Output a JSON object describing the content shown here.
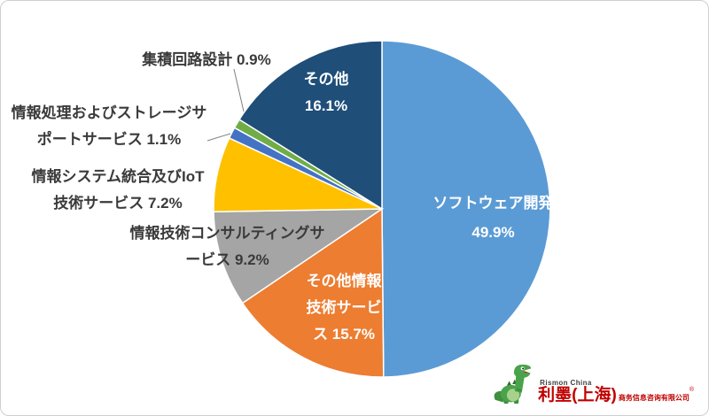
{
  "chart_data": {
    "type": "pie",
    "title": "",
    "unit": "%",
    "start_angle_deg": 0,
    "direction": "clockwise",
    "legend": "none",
    "segments": [
      {
        "label": "ソフトウェア開発",
        "value": 49.9,
        "color": "#5B9BD5",
        "display": "ソフトウェア開発\n49.9%"
      },
      {
        "label": "その他情報技術サービス",
        "value": 15.7,
        "color": "#ED7D31",
        "display": "その他情報\n技術サービ\nス 15.7%"
      },
      {
        "label": "情報技術コンサルティングサービス",
        "value": 9.2,
        "color": "#A5A5A5",
        "display": "情報技術コンサルティングサ\nービス 9.2%"
      },
      {
        "label": "情報システム統合及びIoT技術サービス",
        "value": 7.2,
        "color": "#FFC000",
        "display": "情報システム統合及びIoT\n技術サービス 7.2%"
      },
      {
        "label": "情報処理およびストレージサポートサービス",
        "value": 1.1,
        "color": "#4472C4",
        "display": "情報処理およびストレージサ\nポートサービス 1.1%"
      },
      {
        "label": "集積回路設計",
        "value": 0.9,
        "color": "#70AD47",
        "display": "集積回路設計 0.9%"
      },
      {
        "label": "その他",
        "value": 16.1,
        "color": "#1F4E79",
        "display": "その他\n16.1%"
      }
    ]
  },
  "footer": {
    "brand_top": "Rismon China",
    "brand_main": "利墨(上海)",
    "brand_sub": "商务信息咨询有限公司",
    "brand_reg": "®",
    "brand_color": "#C00000"
  }
}
